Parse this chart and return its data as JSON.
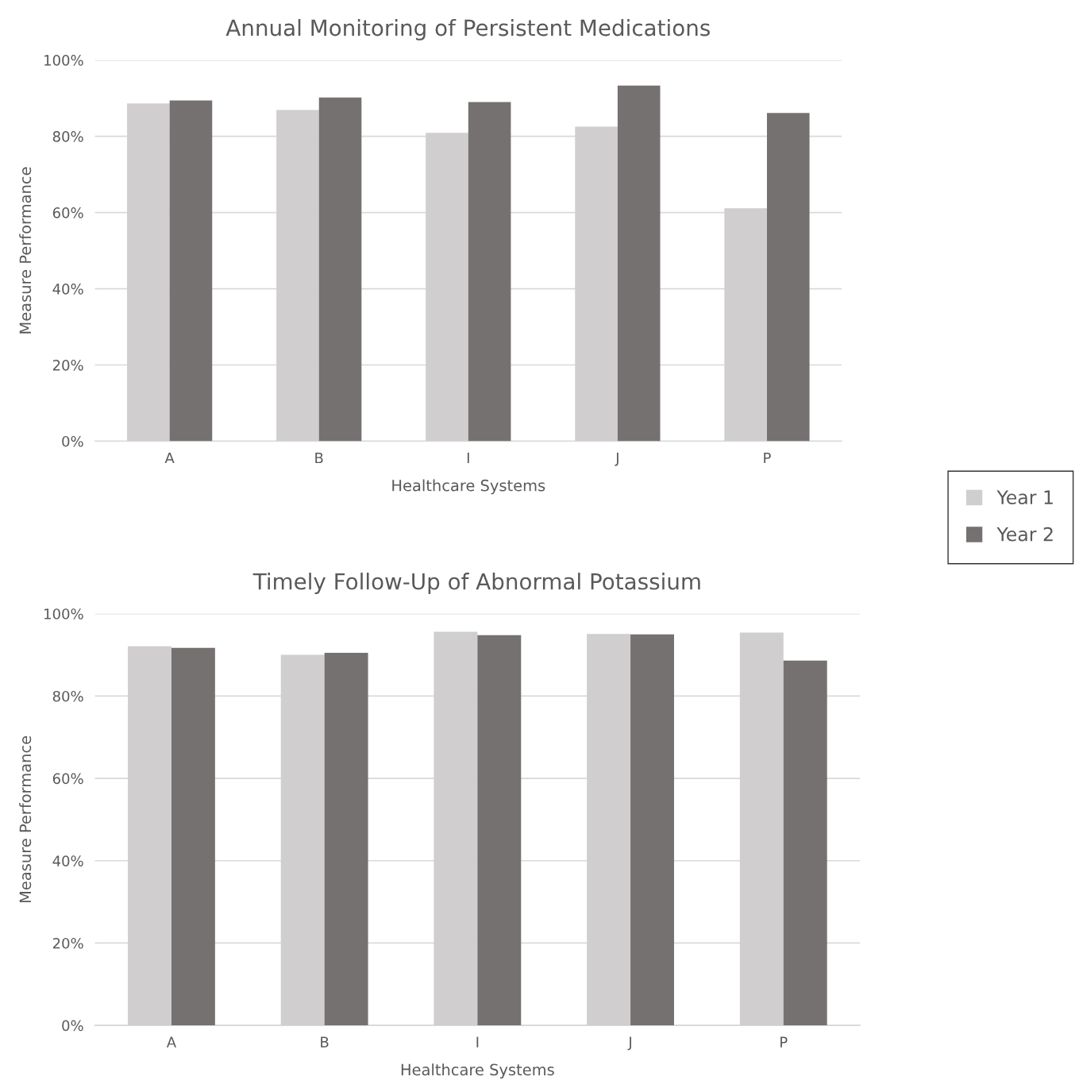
{
  "chart_data": [
    {
      "type": "bar",
      "title": "Annual Monitoring of Persistent Medications",
      "xlabel": "Healthcare Systems",
      "ylabel": "Measure Performance",
      "categories": [
        "A",
        "B",
        "I",
        "J",
        "P"
      ],
      "series": [
        {
          "name": "Year 1",
          "color": "#d0cece",
          "values": [
            88.6,
            86.9,
            80.9,
            82.5,
            61.1
          ]
        },
        {
          "name": "Year 2",
          "color": "#767171",
          "values": [
            89.4,
            90.2,
            89.0,
            93.3,
            86.1
          ]
        }
      ],
      "ylim": [
        0,
        100
      ],
      "yticks": [
        {
          "value": 0,
          "label": "0%"
        },
        {
          "value": 20,
          "label": "20%"
        },
        {
          "value": 40,
          "label": "40%"
        },
        {
          "value": 60,
          "label": "60%"
        },
        {
          "value": 80,
          "label": "80%"
        },
        {
          "value": 100,
          "label": "100%"
        }
      ],
      "grid": "y",
      "legend": "right"
    },
    {
      "type": "bar",
      "title": "Timely Follow-Up of Abnormal Potassium",
      "xlabel": "Healthcare Systems",
      "ylabel": "Measure Performance",
      "categories": [
        "A",
        "B",
        "I",
        "J",
        "P"
      ],
      "series": [
        {
          "color": "#d0cece",
          "values": [
            92.1,
            90.0,
            95.6,
            95.1,
            95.4
          ]
        },
        {
          "color": "#767171",
          "values": [
            91.7,
            90.5,
            94.8,
            95.0,
            88.6
          ]
        }
      ],
      "ylim": [
        0,
        100
      ],
      "yticks": [
        {
          "value": 0,
          "label": "0%"
        },
        {
          "value": 20,
          "label": "20%"
        },
        {
          "value": 40,
          "label": "40%"
        },
        {
          "value": 60,
          "label": "60%"
        },
        {
          "value": 80,
          "label": "80%"
        },
        {
          "value": 100,
          "label": "100%"
        }
      ],
      "grid": "y"
    }
  ]
}
